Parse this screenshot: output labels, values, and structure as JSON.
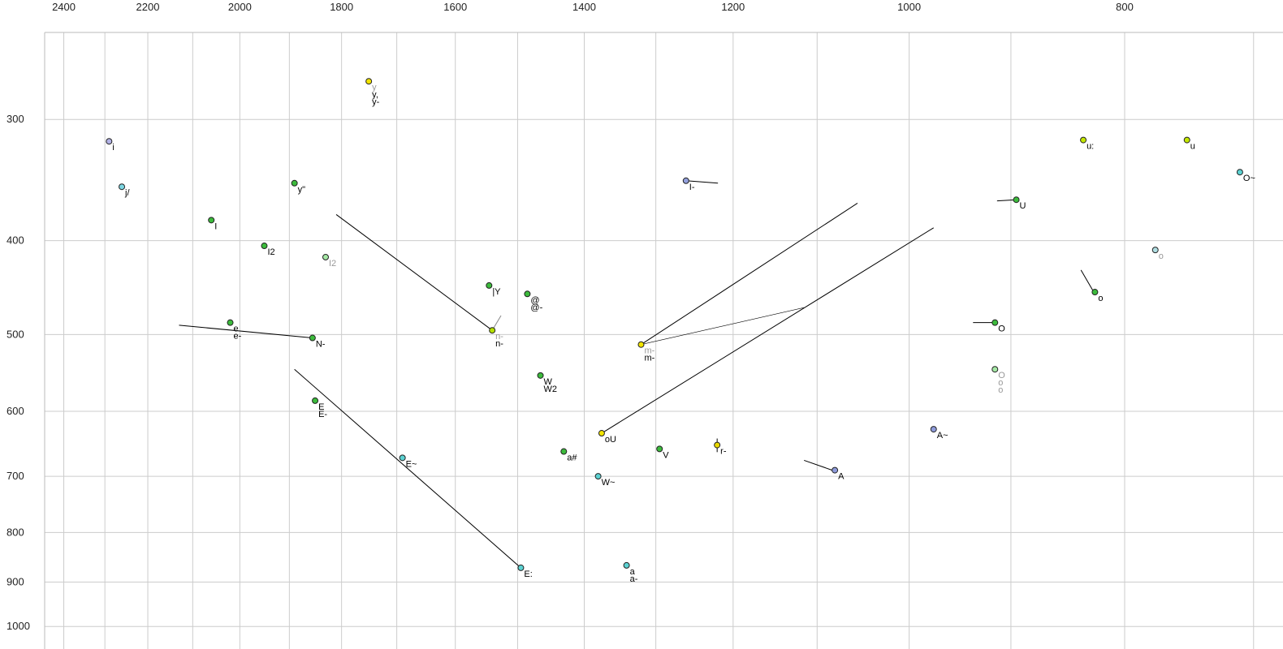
{
  "chart_data": {
    "type": "scatter",
    "title": "",
    "xlabel": "",
    "ylabel": "",
    "description": "Vowel formant scatter plot, F2 on reversed log x-axis (top ticks), F1 on log y-axis increasing downward (left ticks)",
    "x_axis": {
      "ticks": [
        2400,
        2200,
        2000,
        1800,
        1600,
        1400,
        1200,
        1000,
        800
      ],
      "gridlines": [
        2400,
        2300,
        2200,
        2100,
        2000,
        1900,
        1800,
        1700,
        1600,
        1500,
        1400,
        1300,
        1200,
        1100,
        1000,
        900,
        800,
        700
      ],
      "range": [
        2448,
        679
      ],
      "scale": "log",
      "reversed": true
    },
    "y_axis": {
      "ticks": [
        300,
        400,
        500,
        600,
        700,
        800,
        900,
        1000
      ],
      "gridlines": [
        300,
        400,
        500,
        600,
        700,
        800,
        900,
        1000
      ],
      "range": [
        244,
        1055
      ],
      "scale": "log",
      "direction": "down"
    },
    "grid": true,
    "colors": {
      "grid": "#cccccc",
      "frame": "#bbbbbb",
      "line": "#000000",
      "line_muted": "#888888",
      "dot_stroke": "#222222",
      "label": "#000000",
      "label_muted": "#999999"
    },
    "points": [
      {
        "f2": 1750,
        "f1": 274,
        "fill": "#f2e400",
        "labels": [
          {
            "text": "y",
            "muted": true
          },
          {
            "text": "y,"
          },
          {
            "text": "y-"
          }
        ]
      },
      {
        "f2": 2290,
        "f1": 316,
        "fill": "#b2b2e6",
        "labels": [
          {
            "text": "i"
          }
        ]
      },
      {
        "f2": 2260,
        "f1": 352,
        "fill": "#7dd6e2",
        "labels": [
          {
            "text": "j/"
          }
        ]
      },
      {
        "f2": 1890,
        "f1": 349,
        "fill": "#3cbb3c",
        "labels": [
          {
            "text": "y\""
          }
        ]
      },
      {
        "f2": 2060,
        "f1": 381,
        "fill": "#3cbb3c",
        "labels": [
          {
            "text": "I"
          }
        ]
      },
      {
        "f2": 1950,
        "f1": 405,
        "fill": "#3cbb3c",
        "labels": [
          {
            "text": "I2"
          }
        ]
      },
      {
        "f2": 1830,
        "f1": 416,
        "fill": "#a5e8a5",
        "labels": [
          {
            "text": "I2",
            "muted": true
          }
        ]
      },
      {
        "f2": 1545,
        "f1": 445,
        "fill": "#3cbb3c",
        "labels": [
          {
            "text": "|Y"
          }
        ]
      },
      {
        "f2": 1485,
        "f1": 454,
        "fill": "#3cbb3c",
        "labels": [
          {
            "text": "@"
          },
          {
            "text": "@-"
          }
        ]
      },
      {
        "f2": 1540,
        "f1": 495,
        "fill": "#b4e000",
        "labels": [
          {
            "text": "n-",
            "muted": true
          },
          {
            "text": "n-"
          }
        ]
      },
      {
        "f2": 2020,
        "f1": 486,
        "fill": "#3cbb3c",
        "labels": [
          {
            "text": "e"
          },
          {
            "text": "e-"
          }
        ]
      },
      {
        "f2": 1855,
        "f1": 504,
        "fill": "#3cbb3c",
        "labels": [
          {
            "text": "N-"
          }
        ]
      },
      {
        "f2": 1465,
        "f1": 551,
        "fill": "#3cbb3c",
        "labels": [
          {
            "text": "W"
          },
          {
            "text": "W2"
          }
        ]
      },
      {
        "f2": 1320,
        "f1": 512,
        "fill": "#f2e400",
        "labels": [
          {
            "text": "m-",
            "muted": true
          },
          {
            "text": "m-"
          }
        ]
      },
      {
        "f2": 1375,
        "f1": 632,
        "fill": "#f2e400",
        "labels": [
          {
            "text": "oU"
          }
        ]
      },
      {
        "f2": 1430,
        "f1": 660,
        "fill": "#3cbb3c",
        "labels": [
          {
            "text": "a#"
          }
        ]
      },
      {
        "f2": 1295,
        "f1": 656,
        "fill": "#3cbb3c",
        "labels": [
          {
            "text": "V"
          }
        ]
      },
      {
        "f2": 1220,
        "f1": 650,
        "fill": "#e8d800",
        "labels": [
          {
            "text": "r-"
          }
        ]
      },
      {
        "f2": 1380,
        "f1": 700,
        "fill": "#5cd2d2",
        "labels": [
          {
            "text": "W~"
          }
        ]
      },
      {
        "f2": 1340,
        "f1": 865,
        "fill": "#5cd2d2",
        "labels": [
          {
            "text": "a"
          },
          {
            "text": "a-"
          }
        ]
      },
      {
        "f2": 1850,
        "f1": 585,
        "fill": "#3cbb3c",
        "labels": [
          {
            "text": "E"
          },
          {
            "text": "E-"
          }
        ]
      },
      {
        "f2": 1690,
        "f1": 670,
        "fill": "#5cd2d2",
        "labels": [
          {
            "text": "E~"
          }
        ]
      },
      {
        "f2": 1495,
        "f1": 870,
        "fill": "#5cd2d2",
        "labels": [
          {
            "text": "E:"
          }
        ]
      },
      {
        "f2": 1260,
        "f1": 347,
        "fill": "#93a0dd",
        "labels": [
          {
            "text": "I-"
          }
        ]
      },
      {
        "f2": 895,
        "f1": 363,
        "fill": "#3cbb3c",
        "labels": [
          {
            "text": "U"
          }
        ]
      },
      {
        "f2": 835,
        "f1": 315,
        "fill": "#c4e800",
        "labels": [
          {
            "text": "u:"
          }
        ]
      },
      {
        "f2": 750,
        "f1": 315,
        "fill": "#c4e800",
        "labels": [
          {
            "text": "u"
          }
        ]
      },
      {
        "f2": 710,
        "f1": 340,
        "fill": "#5cd2d2",
        "labels": [
          {
            "text": "O~"
          }
        ]
      },
      {
        "f2": 775,
        "f1": 409,
        "fill": "#b0dee2",
        "labels": [
          {
            "text": "o",
            "muted": true
          }
        ]
      },
      {
        "f2": 825,
        "f1": 452,
        "fill": "#3cbb3c",
        "labels": [
          {
            "text": "o"
          }
        ]
      },
      {
        "f2": 915,
        "f1": 486,
        "fill": "#3cbb3c",
        "labels": [
          {
            "text": "O"
          }
        ]
      },
      {
        "f2": 915,
        "f1": 543,
        "fill": "#a5e8a5",
        "labels": [
          {
            "text": "O",
            "muted": true
          },
          {
            "text": "o",
            "muted": true
          },
          {
            "text": "o",
            "muted": true
          }
        ]
      },
      {
        "f2": 975,
        "f1": 626,
        "fill": "#8e9bdb",
        "labels": [
          {
            "text": "A~"
          }
        ]
      },
      {
        "f2": 1080,
        "f1": 690,
        "fill": "#8e9bdb",
        "labels": [
          {
            "text": "A"
          }
        ]
      }
    ],
    "segments": [
      {
        "a": [
          1810,
          376
        ],
        "b": [
          1540,
          495
        ]
      },
      {
        "a": [
          2130,
          489
        ],
        "b": [
          1855,
          504
        ]
      },
      {
        "a": [
          1890,
          543
        ],
        "b": [
          1495,
          870
        ]
      },
      {
        "a": [
          1320,
          512
        ],
        "b": [
          1055,
          366
        ]
      },
      {
        "a": [
          1320,
          512
        ],
        "b": [
          1115,
          469
        ],
        "thin": true
      },
      {
        "a": [
          1375,
          632
        ],
        "b": [
          975,
          388
        ]
      },
      {
        "a": [
          1526,
          478
        ],
        "b": [
          1540,
          495
        ],
        "muted": true
      },
      {
        "a": [
          1260,
          347
        ],
        "b": [
          1219,
          349
        ]
      },
      {
        "a": [
          913,
          364
        ],
        "b": [
          895,
          363
        ]
      },
      {
        "a": [
          837,
          429
        ],
        "b": [
          826,
          452
        ]
      },
      {
        "a": [
          936,
          486
        ],
        "b": [
          915,
          486
        ]
      },
      {
        "a": [
          1115,
          674
        ],
        "b": [
          1081,
          691
        ]
      },
      {
        "a": [
          1220,
          640
        ],
        "b": [
          1220,
          661
        ]
      }
    ]
  }
}
